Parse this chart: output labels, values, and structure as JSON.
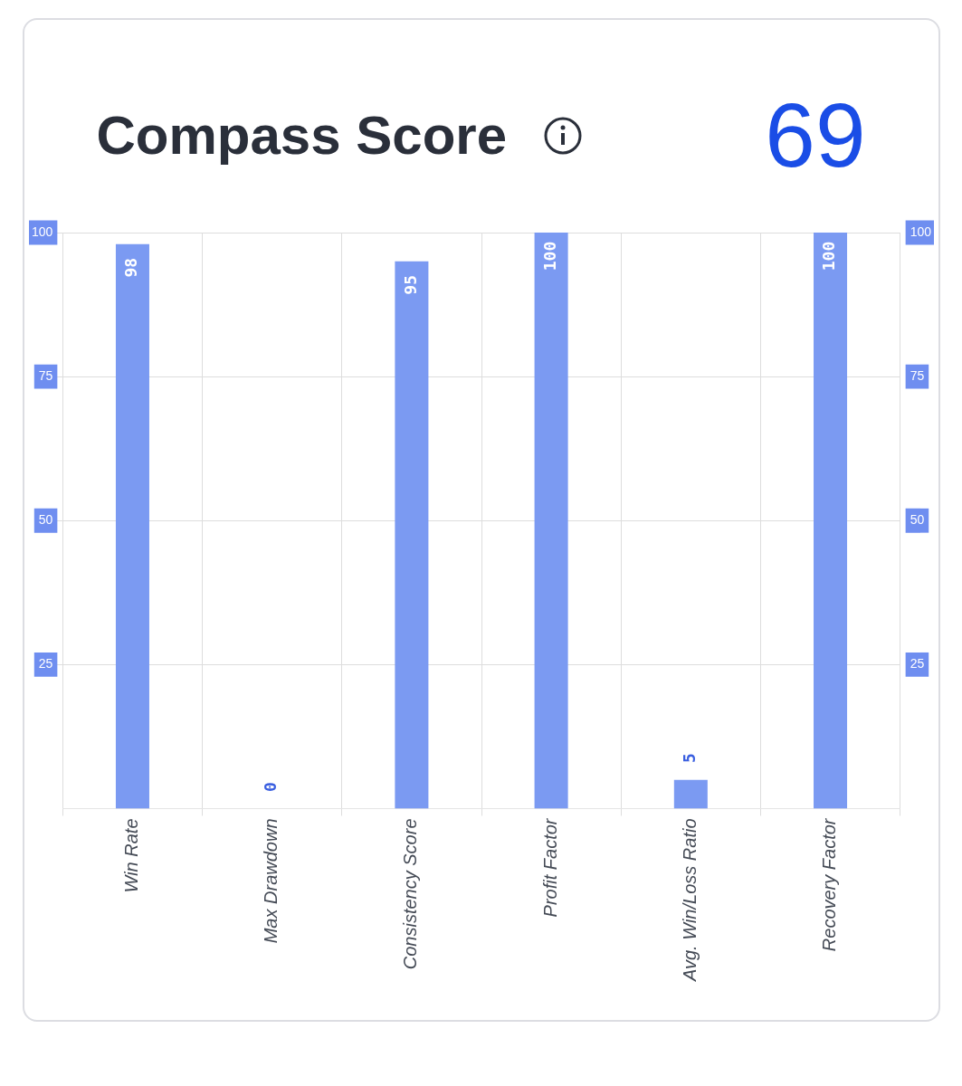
{
  "chart_data": {
    "type": "bar",
    "title": "Compass Score",
    "annotations": [
      "69"
    ],
    "categories": [
      "Win Rate",
      "Max Drawdown",
      "Consistency Score",
      "Profit Factor",
      "Avg. Win/Loss Ratio",
      "Recovery Factor"
    ],
    "values": [
      98,
      0,
      95,
      100,
      5,
      100
    ],
    "color": "#7b9af2",
    "ylim": [
      0,
      100
    ],
    "yticks": [
      25,
      50,
      75,
      100
    ],
    "y2lim": [
      0,
      100
    ],
    "y2ticks": [
      25,
      50,
      75,
      100
    ],
    "grid": true,
    "legend": false,
    "data_labels": true
  }
}
